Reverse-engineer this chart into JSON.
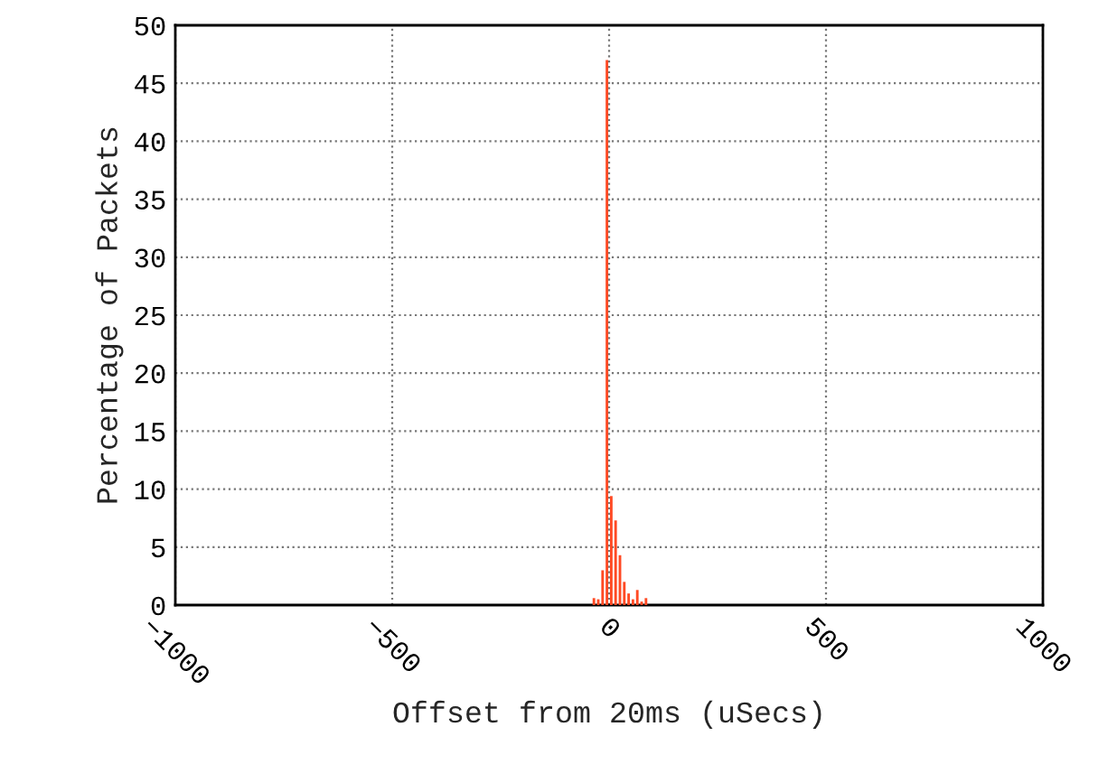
{
  "chart_data": {
    "type": "histogram",
    "xlabel": "Offset from 20ms (uSecs)",
    "ylabel": "Percentage of Packets",
    "bins": [
      -40,
      -30,
      -20,
      -10,
      0,
      10,
      20,
      30,
      40,
      50,
      60,
      70,
      80,
      90
    ],
    "values": [
      0.6,
      0.5,
      3.0,
      47,
      9.4,
      7.3,
      4.3,
      2.0,
      1.0,
      0.5,
      1.3,
      0.3,
      0.6
    ],
    "color": "#ff4a24",
    "xlim": [
      -1000,
      1000
    ],
    "xticks": [
      {
        "value": -1000,
        "label": "−1000"
      },
      {
        "value": -500,
        "label": "−500"
      },
      0,
      500,
      1000
    ],
    "ylim": [
      0,
      50
    ],
    "yticks": [
      0,
      5,
      10,
      15,
      20,
      25,
      30,
      35,
      40,
      45,
      50
    ],
    "grid": true
  }
}
